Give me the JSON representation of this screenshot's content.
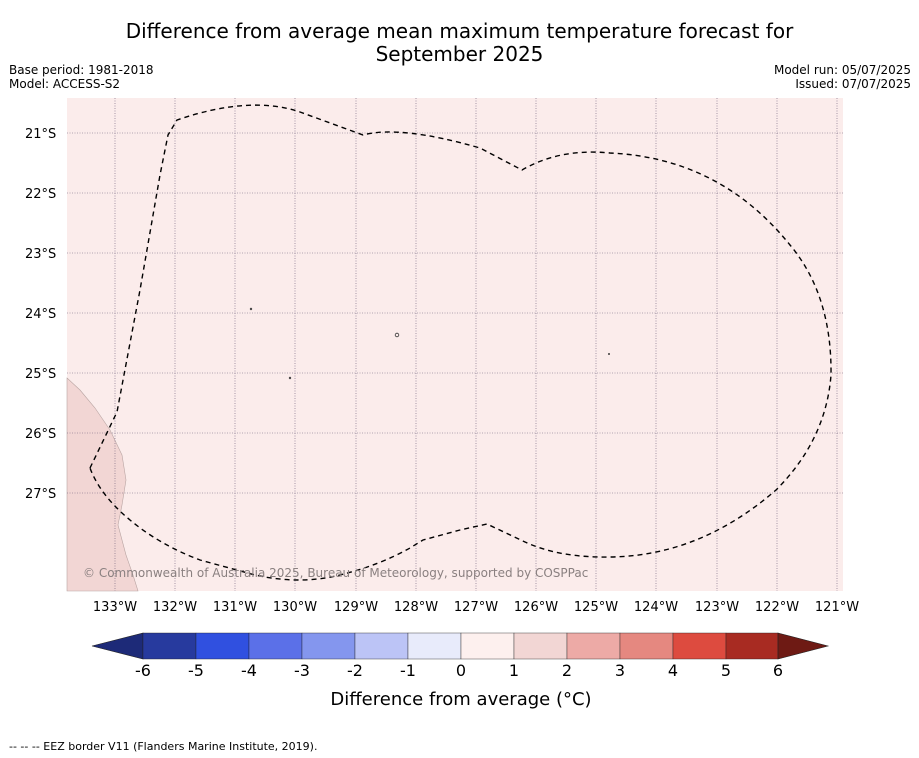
{
  "title": {
    "line1": "Difference from average mean maximum temperature forecast for",
    "line2": "September 2025"
  },
  "meta_left": {
    "base_period": "Base period: 1981-2018",
    "model": "Model: ACCESS-S2"
  },
  "meta_right": {
    "model_run": "Model run: 05/07/2025",
    "issued": "Issued: 07/07/2025"
  },
  "map": {
    "lat_labels": [
      "21°S",
      "22°S",
      "23°S",
      "24°S",
      "25°S",
      "26°S",
      "27°S"
    ],
    "lon_labels": [
      "133°W",
      "132°W",
      "131°W",
      "130°W",
      "129°W",
      "128°W",
      "127°W",
      "126°W",
      "125°W",
      "124°W",
      "123°W",
      "122°W",
      "121°W"
    ],
    "copyright": "© Commonwealth of Australia 2025, Bureau of Meteorology, supported by COSPPac",
    "fill_color": "#fbeceb",
    "land_color": "#f2d6d4"
  },
  "colorbar": {
    "ticks": [
      "-6",
      "-5",
      "-4",
      "-3",
      "-2",
      "-1",
      "0",
      "1",
      "2",
      "3",
      "4",
      "5",
      "6"
    ],
    "colors": [
      "#273a9e",
      "#3050e0",
      "#5b70e8",
      "#8496ee",
      "#bcc4f6",
      "#e8ebfb",
      "#fdf0ee",
      "#f2d6d4",
      "#edaaa6",
      "#e58880",
      "#dd4b3f",
      "#a82b22"
    ],
    "under_color": "#1d2a78",
    "over_color": "#6e1a14",
    "label": "Difference from average (°C)"
  },
  "footnote": "-- -- -- EEZ border V11 (Flanders Marine Institute, 2019)."
}
